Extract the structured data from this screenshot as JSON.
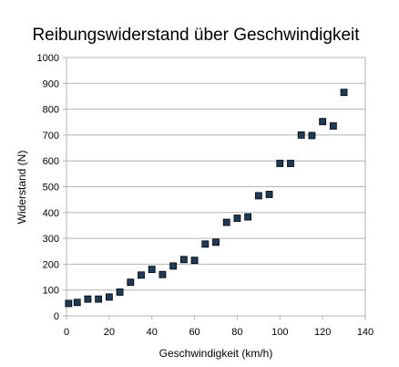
{
  "chart_data": {
    "type": "scatter",
    "title": "Reibungswiderstand über Geschwindigkeit",
    "xlabel": "Geschwindigkeit (km/h)",
    "ylabel": "Widerstand (N)",
    "xlim": [
      0,
      140
    ],
    "ylim": [
      0,
      1000
    ],
    "xticks": [
      0,
      20,
      40,
      60,
      80,
      100,
      120,
      140
    ],
    "yticks": [
      0,
      100,
      200,
      300,
      400,
      500,
      600,
      700,
      800,
      900,
      1000
    ],
    "grid": true,
    "legend": "none",
    "marker_color": "#1f3b5c",
    "series": [
      {
        "x": [
          1,
          5,
          10,
          15,
          20,
          25,
          30,
          35,
          40,
          45,
          50,
          55,
          60,
          65,
          70,
          75,
          80,
          85,
          90,
          95,
          100,
          105,
          110,
          115,
          120,
          125,
          130
        ],
        "y": [
          48,
          52,
          65,
          65,
          73,
          92,
          130,
          158,
          180,
          160,
          193,
          218,
          215,
          278,
          285,
          362,
          378,
          383,
          465,
          470,
          590,
          590,
          700,
          698,
          752,
          735,
          865
        ]
      }
    ]
  }
}
